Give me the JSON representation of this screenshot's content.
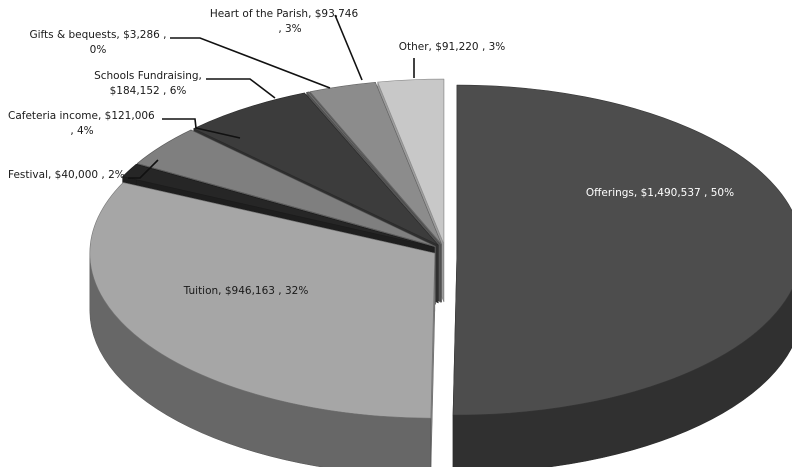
{
  "chart_data": {
    "type": "pie",
    "style": "3d-exploded",
    "title": "",
    "slices": [
      {
        "category": "Offerings",
        "amount": "$1,490,537",
        "value": 1490537,
        "percent": "50%",
        "color": "#4d4d4d"
      },
      {
        "category": "Tuition",
        "amount": "$946,163",
        "value": 946163,
        "percent": "32%",
        "color": "#a6a6a6"
      },
      {
        "category": "Festival",
        "amount": "$40,000",
        "value": 40000,
        "percent": "2%",
        "color": "#262626"
      },
      {
        "category": "Cafeteria income",
        "amount": "$121,006",
        "value": 121006,
        "percent": "4%",
        "color": "#7f7f7f"
      },
      {
        "category": "Schools Fundraising",
        "amount": "$184,152",
        "value": 184152,
        "percent": "6%",
        "color": "#3c3c3c"
      },
      {
        "category": "Gifts & bequests",
        "amount": "$3,286",
        "value": 3286,
        "percent": "0%",
        "color": "#6e6e6e"
      },
      {
        "category": "Heart of the Parish",
        "amount": "$93,746",
        "value": 93746,
        "percent": "3%",
        "color": "#8c8c8c"
      },
      {
        "category": "Other",
        "amount": "$91,220",
        "value": 91220,
        "percent": "3%",
        "color": "#c8c8c8"
      }
    ]
  },
  "labels": {
    "offerings": "Offerings, $1,490,537 , 50%",
    "tuition": "Tuition, $946,163 , 32%",
    "festival": "Festival, $40,000 , 2%",
    "cafeteria_1": "Cafeteria income, $121,006",
    "cafeteria_2": ", 4%",
    "schools_1": "Schools Fundraising,",
    "schools_2": "$184,152 , 6%",
    "gifts_1": "Gifts & bequests, $3,286 ,",
    "gifts_2": "0%",
    "heart_1": "Heart of the Parish, $93,746",
    "heart_2": ", 3%",
    "other": "Other, $91,220 , 3%"
  }
}
